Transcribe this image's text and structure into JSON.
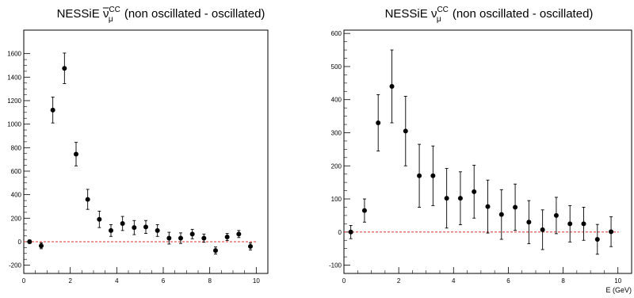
{
  "chart_data": [
    {
      "type": "scatter",
      "title_main": "NESSiE ",
      "title_particle": "ν",
      "title_particle_sup": "CC",
      "title_particle_sub": "μ",
      "title_suffix": " (non oscillated - oscillated)",
      "antineutrino": true,
      "xlabel": "",
      "xlim": [
        0,
        10.5
      ],
      "ylim": [
        -270,
        1800
      ],
      "xticks": [
        0,
        2,
        4,
        6,
        8,
        10
      ],
      "yticks": [
        -200,
        0,
        200,
        400,
        600,
        800,
        1000,
        1200,
        1400,
        1600
      ],
      "reference_line": {
        "y": 0,
        "color": "#e03030",
        "style": "dashed"
      },
      "series": [
        {
          "x": [
            0.25,
            0.75,
            1.25,
            1.75,
            2.25,
            2.75,
            3.25,
            3.75,
            4.25,
            4.75,
            5.25,
            5.75,
            6.25,
            6.75,
            7.25,
            7.75,
            8.25,
            8.75,
            9.25,
            9.75
          ],
          "y": [
            0,
            -35,
            1120,
            1475,
            745,
            360,
            190,
            95,
            155,
            120,
            125,
            95,
            30,
            30,
            65,
            30,
            -75,
            40,
            65,
            -40
          ],
          "err": [
            15,
            25,
            110,
            130,
            100,
            85,
            70,
            50,
            60,
            60,
            55,
            50,
            50,
            45,
            40,
            35,
            30,
            30,
            30,
            30
          ]
        }
      ]
    },
    {
      "type": "scatter",
      "title_main": "NESSiE ",
      "title_particle": "ν",
      "title_particle_sup": "CC",
      "title_particle_sub": "μ",
      "title_suffix": " (non oscillated - oscillated)",
      "antineutrino": false,
      "xlabel": "E (GeV)",
      "xlim": [
        0,
        10.5
      ],
      "ylim": [
        -125,
        610
      ],
      "xticks": [
        0,
        2,
        4,
        6,
        8,
        10
      ],
      "yticks": [
        -100,
        0,
        100,
        200,
        300,
        400,
        500,
        600
      ],
      "reference_line": {
        "y": 0,
        "color": "#e03030",
        "style": "dashed"
      },
      "series": [
        {
          "x": [
            0.25,
            0.75,
            1.25,
            1.75,
            2.25,
            2.75,
            3.25,
            3.75,
            4.25,
            4.75,
            5.25,
            5.75,
            6.25,
            6.75,
            7.25,
            7.75,
            8.25,
            8.75,
            9.25,
            9.75
          ],
          "y": [
            0,
            65,
            330,
            440,
            305,
            170,
            170,
            102,
            102,
            122,
            77,
            53,
            75,
            30,
            7,
            50,
            25,
            25,
            -22,
            1
          ],
          "err": [
            20,
            35,
            85,
            110,
            105,
            95,
            90,
            90,
            80,
            80,
            80,
            75,
            70,
            65,
            60,
            55,
            55,
            50,
            45,
            45
          ]
        }
      ]
    }
  ]
}
